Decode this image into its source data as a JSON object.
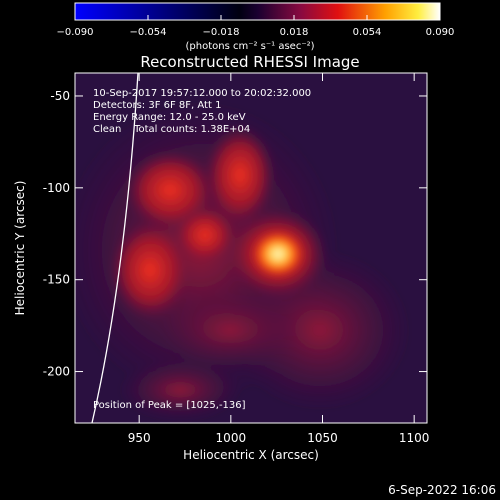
{
  "chart_data": {
    "type": "image",
    "title": "Reconstructed RHESSI Image",
    "xlabel": "Heliocentric X (arcsec)",
    "ylabel": "Heliocentric Y (arcsec)",
    "xlim": [
      915,
      1107
    ],
    "xticks": [
      950,
      1000,
      1050,
      1100
    ],
    "ylim": [
      -228,
      -37.5
    ],
    "yticks": [
      -50,
      -100,
      -150,
      -200
    ],
    "colorbar": {
      "label": "(photons cm⁻² s⁻¹ asec⁻²)",
      "lim": [
        -0.09,
        0.09
      ],
      "ticks": [
        {
          "value": -0.09,
          "label": "−0.090"
        },
        {
          "value": -0.054,
          "label": "−0.054"
        },
        {
          "value": -0.018,
          "label": "−0.018"
        },
        {
          "value": 0.018,
          "label": "0.018"
        },
        {
          "value": 0.054,
          "label": "0.054"
        },
        {
          "value": 0.09,
          "label": "0.090"
        }
      ]
    },
    "annotations": [
      "10-Sep-2017 19:57:12.000 to 20:02:32.000",
      "Detectors: 3F 6F 8F, Att 1",
      "Energy Range: 12.0 - 25.0 keV",
      "Clean    Total counts: 1.38E+04"
    ],
    "peak_label": "Position of Peak = [1025,-136]",
    "footer": "6-Sep-2022 16:06"
  }
}
